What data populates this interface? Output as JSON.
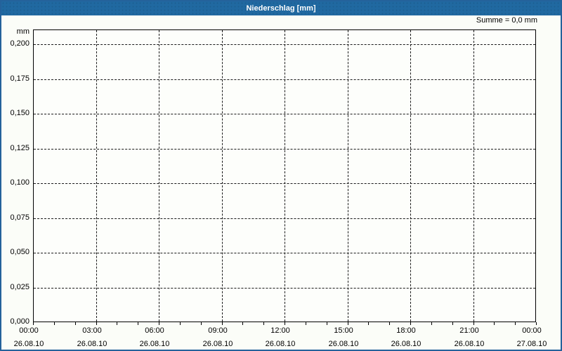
{
  "window": {
    "title": "Niederschlag [mm]",
    "summary": "Summe = 0,0 mm",
    "colors": {
      "titlebar_bg": "#2069A1",
      "titlebar_text": "#FFFFFF",
      "window_border": "#24629B",
      "page_bg": "#FBFDF8",
      "plot_bg": "#FDFEFB",
      "axis": "#000000",
      "grid": "#1A1A1A",
      "text": "#000000"
    }
  },
  "chart_data": {
    "type": "bar",
    "title": "Niederschlag [mm]",
    "ylabel": "mm",
    "unit_label": "mm",
    "summary_label": "Summe = 0,0 mm",
    "total_mm": 0.0,
    "ylim": [
      0.0,
      0.2
    ],
    "y_tick_step": 0.025,
    "y_ticks": [
      "0,000",
      "0,025",
      "0,050",
      "0,075",
      "0,100",
      "0,125",
      "0,150",
      "0,175",
      "0,200"
    ],
    "x_major_ticks": [
      {
        "time": "00:00",
        "date": "26.08.10"
      },
      {
        "time": "03:00",
        "date": "26.08.10"
      },
      {
        "time": "06:00",
        "date": "26.08.10"
      },
      {
        "time": "09:00",
        "date": "26.08.10"
      },
      {
        "time": "12:00",
        "date": "26.08.10"
      },
      {
        "time": "15:00",
        "date": "26.08.10"
      },
      {
        "time": "18:00",
        "date": "26.08.10"
      },
      {
        "time": "21:00",
        "date": "26.08.10"
      },
      {
        "time": "00:00",
        "date": "27.08.10"
      }
    ],
    "x_minor_tick_interval_hours": 1,
    "x_range_hours": 24,
    "grid": "dashed",
    "legend": "none",
    "series": [
      {
        "name": "Niederschlag",
        "values": []
      }
    ]
  }
}
